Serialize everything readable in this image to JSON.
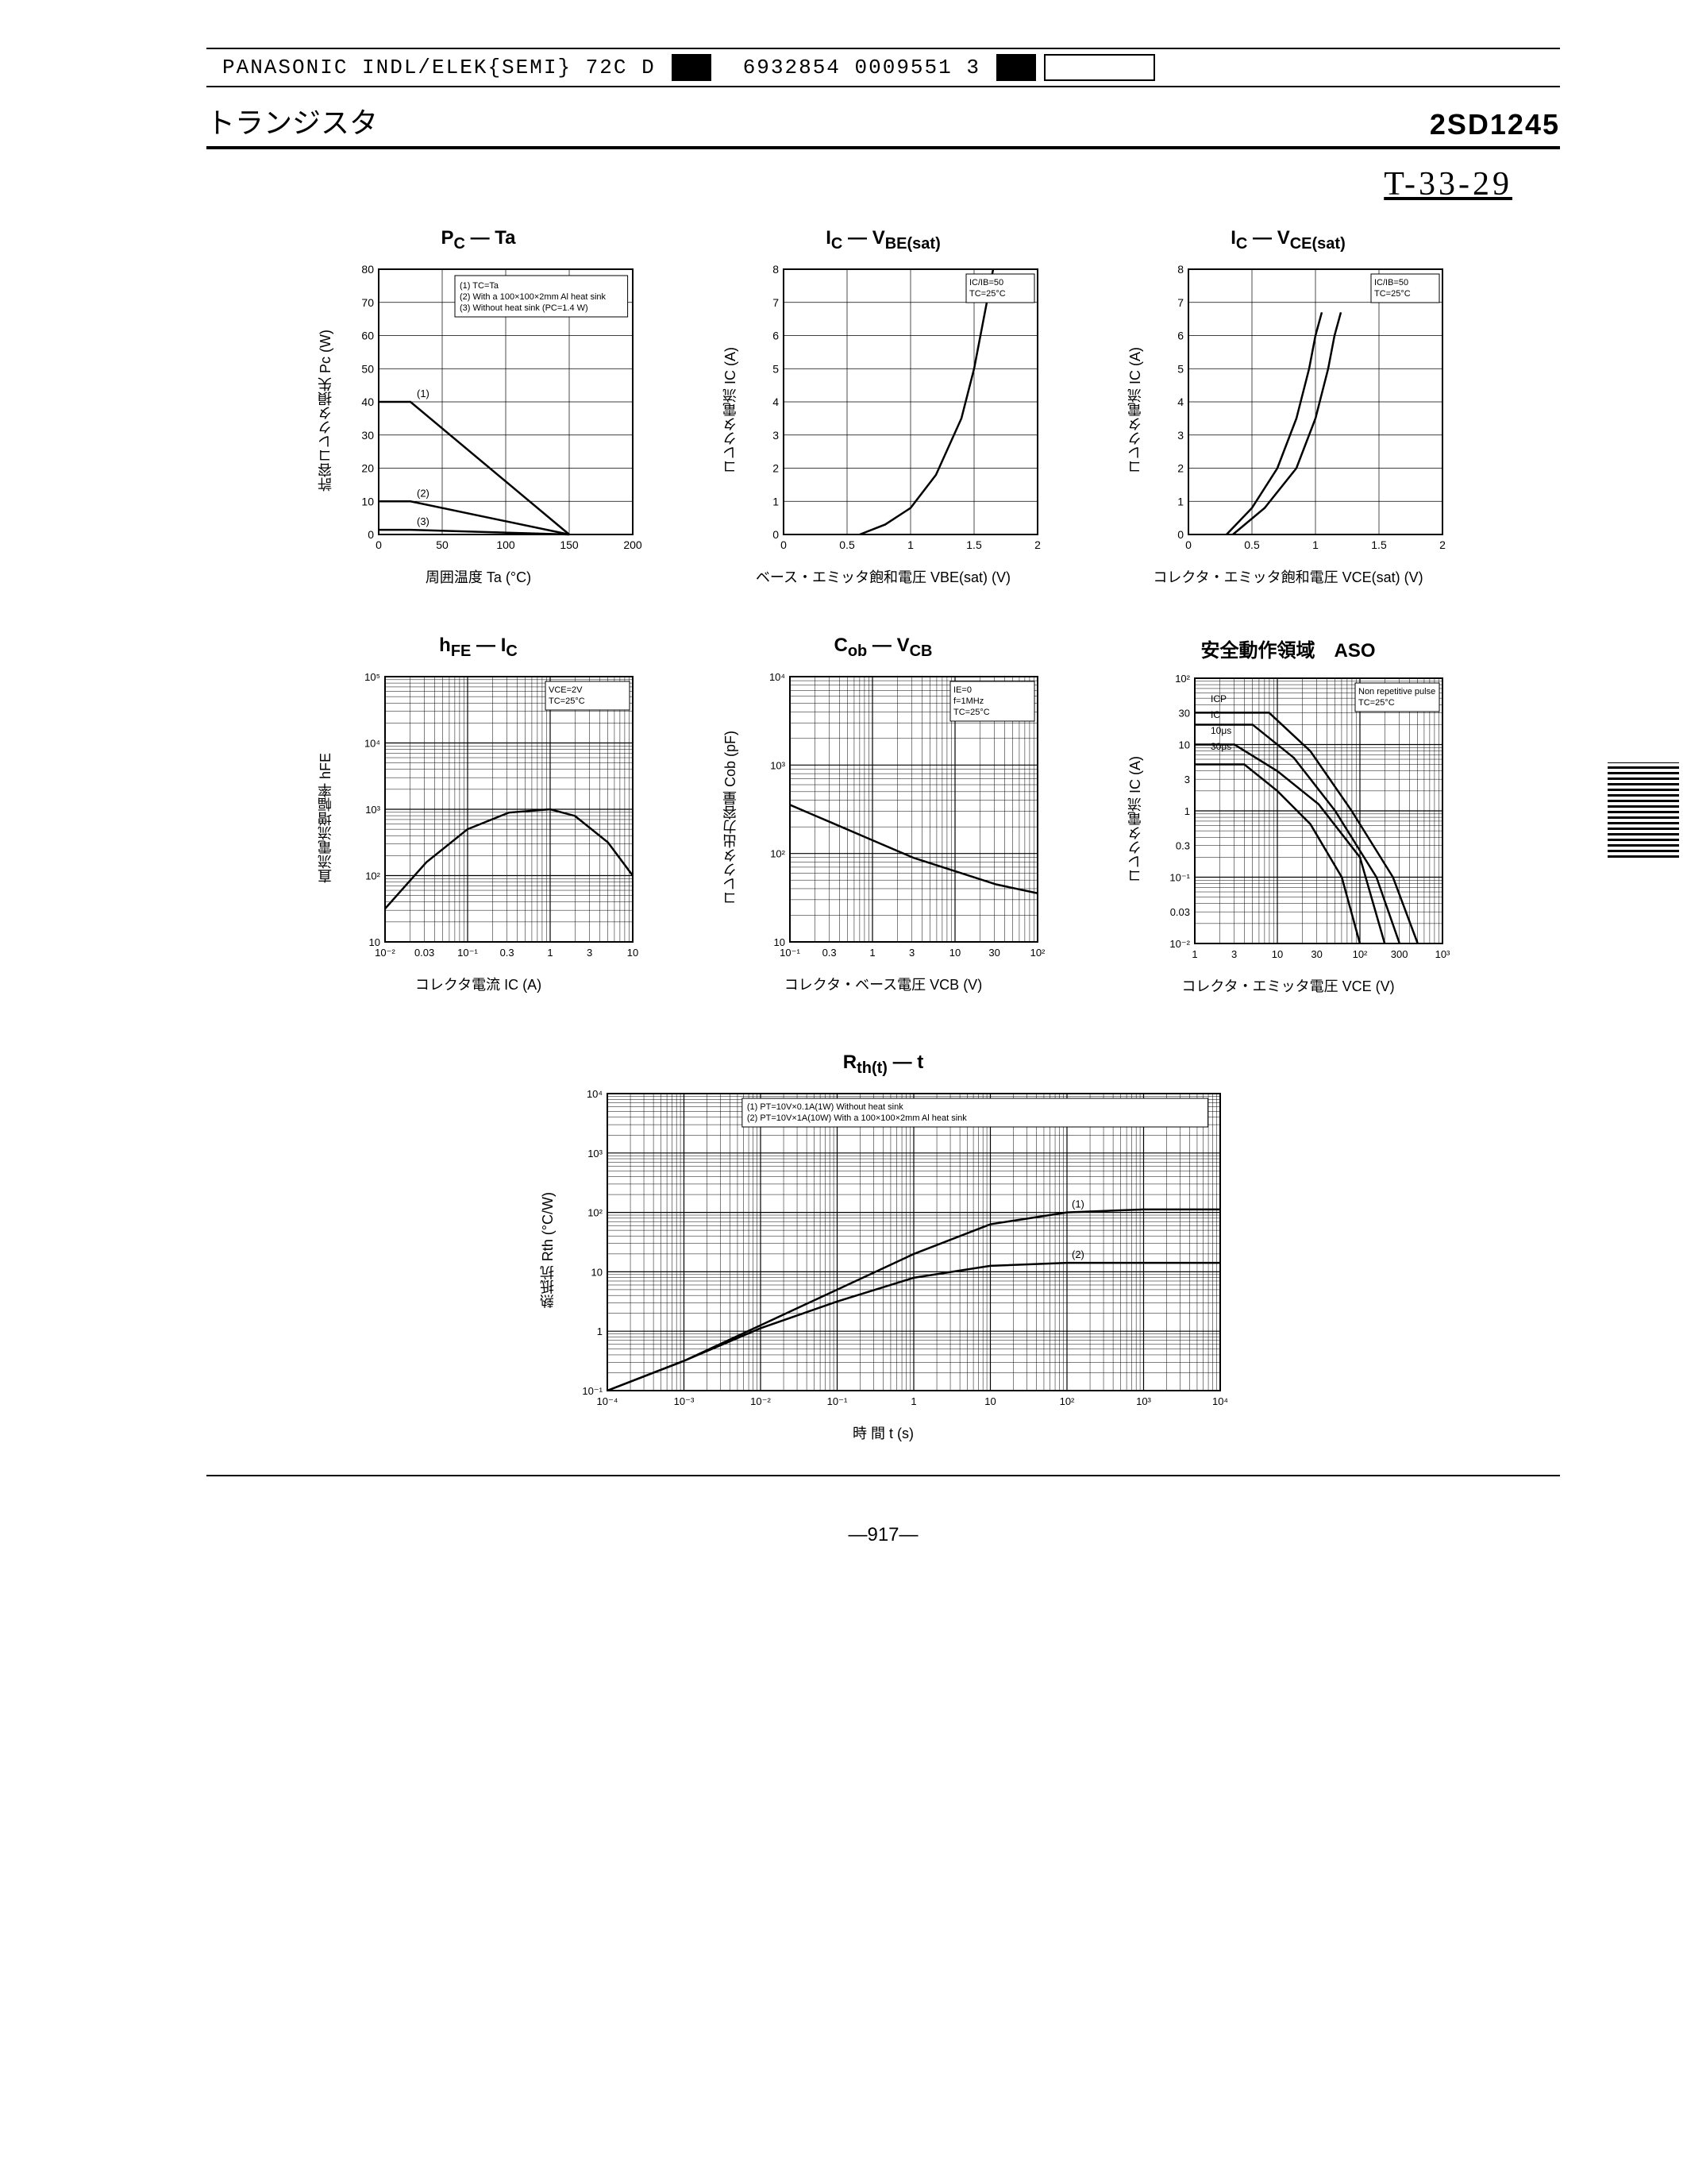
{
  "header": {
    "company": "PANASONIC INDL/ELEK{SEMI} 72C D",
    "code": "6932854 0009551 3"
  },
  "title_jp": "トランジスタ",
  "part_number": "2SD1245",
  "handwritten_code": "T-33-29",
  "page_number": "—917—",
  "common": {
    "line_color": "#000000",
    "border_color": "#000000",
    "grid_color": "#000000",
    "bg": "#ffffff"
  },
  "charts": {
    "pc_ta": {
      "type": "line",
      "title_html": "P<sub>C</sub> — Ta",
      "x_label": "周囲温度 Ta (°C)",
      "y_label": "許容コレクタ損失 Pc (W)",
      "xlim": [
        0,
        200
      ],
      "ylim": [
        0,
        80
      ],
      "xticks": [
        0,
        50,
        100,
        150,
        200
      ],
      "yticks": [
        0,
        10,
        20,
        30,
        40,
        50,
        60,
        70,
        80
      ],
      "legend": [
        "(1) TC=Ta",
        "(2) With a 100×100×2mm Al heat sink",
        "(3) Without heat sink (PC=1.4 W)"
      ],
      "series": [
        {
          "label": "(1)",
          "pts": [
            [
              0,
              40
            ],
            [
              25,
              40
            ],
            [
              150,
              0
            ]
          ]
        },
        {
          "label": "(2)",
          "pts": [
            [
              0,
              10
            ],
            [
              25,
              10
            ],
            [
              150,
              0
            ]
          ]
        },
        {
          "label": "(3)",
          "pts": [
            [
              0,
              1.4
            ],
            [
              25,
              1.4
            ],
            [
              150,
              0
            ]
          ]
        }
      ]
    },
    "ic_vbe": {
      "type": "line",
      "title_html": "I<sub>C</sub> — V<sub>BE(sat)</sub>",
      "x_label": "ベース・エミッタ飽和電圧 VBE(sat) (V)",
      "y_label": "コレクタ電流 IC (A)",
      "xlim": [
        0,
        2.0
      ],
      "ylim": [
        0,
        8
      ],
      "xticks": [
        0,
        0.5,
        1.0,
        1.5,
        2.0
      ],
      "yticks": [
        0,
        1,
        2,
        3,
        4,
        5,
        6,
        7,
        8
      ],
      "cond": [
        "IC/IB=50",
        "TC=25°C"
      ],
      "series": [
        {
          "pts": [
            [
              0.6,
              0
            ],
            [
              0.8,
              0.3
            ],
            [
              1.0,
              0.8
            ],
            [
              1.2,
              1.8
            ],
            [
              1.4,
              3.5
            ],
            [
              1.5,
              5
            ],
            [
              1.55,
              6
            ],
            [
              1.6,
              7
            ],
            [
              1.65,
              8
            ]
          ]
        }
      ]
    },
    "ic_vce": {
      "type": "line",
      "title_html": "I<sub>C</sub> — V<sub>CE(sat)</sub>",
      "x_label": "コレクタ・エミッタ飽和電圧 VCE(sat) (V)",
      "y_label": "コレクタ電流 IC (A)",
      "xlim": [
        0,
        2.0
      ],
      "ylim": [
        0,
        8
      ],
      "xticks": [
        0,
        0.5,
        1.0,
        1.5,
        2.0
      ],
      "yticks": [
        0,
        1,
        2,
        3,
        4,
        5,
        6,
        7,
        8
      ],
      "cond": [
        "IC/IB=50",
        "TC=25°C"
      ],
      "series": [
        {
          "pts": [
            [
              0.3,
              0
            ],
            [
              0.5,
              0.8
            ],
            [
              0.7,
              2.0
            ],
            [
              0.85,
              3.5
            ],
            [
              0.95,
              5
            ],
            [
              1.0,
              6
            ],
            [
              1.05,
              6.7
            ]
          ]
        },
        {
          "pts": [
            [
              0.35,
              0
            ],
            [
              0.6,
              0.8
            ],
            [
              0.85,
              2.0
            ],
            [
              1.0,
              3.5
            ],
            [
              1.1,
              5
            ],
            [
              1.15,
              6
            ],
            [
              1.2,
              6.7
            ]
          ]
        }
      ]
    },
    "hfe_ic": {
      "type": "loglog",
      "title_html": "h<sub>FE</sub> — I<sub>C</sub>",
      "x_label": "コレクタ電流 IC (A)",
      "y_label": "直流電流増幅率 hFE",
      "x_decades": [
        0.01,
        0.03,
        0.1,
        0.3,
        1,
        3,
        10
      ],
      "y_decades": [
        10,
        100,
        1000,
        10000,
        100000
      ],
      "xlim_log": [
        -2,
        1
      ],
      "ylim_log": [
        1,
        5
      ],
      "cond": [
        "VCE=2V",
        "TC=25°C"
      ],
      "series": [
        {
          "pts_log": [
            [
              -2,
              1.5
            ],
            [
              -1.5,
              2.2
            ],
            [
              -1,
              2.7
            ],
            [
              -0.5,
              2.95
            ],
            [
              0,
              3.0
            ],
            [
              0.3,
              2.9
            ],
            [
              0.7,
              2.5
            ],
            [
              1,
              2.0
            ]
          ]
        }
      ]
    },
    "cob_vcb": {
      "type": "loglog",
      "title_html": "C<sub>ob</sub> — V<sub>CB</sub>",
      "x_label": "コレクタ・ベース電圧 VCB (V)",
      "y_label": "コレクタ出力容量 Cob (pF)",
      "x_decades": [
        0.1,
        0.3,
        1,
        3,
        10,
        30,
        100
      ],
      "y_decades": [
        10,
        100,
        1000,
        10000
      ],
      "xlim_log": [
        -1,
        2
      ],
      "ylim_log": [
        1,
        4
      ],
      "cond": [
        "IE=0",
        "f=1MHz",
        "TC=25°C"
      ],
      "series": [
        {
          "pts_log": [
            [
              -1,
              2.55
            ],
            [
              -0.5,
              2.35
            ],
            [
              0,
              2.15
            ],
            [
              0.5,
              1.95
            ],
            [
              1,
              1.8
            ],
            [
              1.5,
              1.65
            ],
            [
              2,
              1.55
            ]
          ]
        }
      ]
    },
    "aso": {
      "type": "loglog",
      "title_html": "安全動作領域　ASO",
      "x_label": "コレクタ・エミッタ電圧 VCE (V)",
      "y_label": "コレクタ電流 IC (A)",
      "x_decades": [
        1,
        3,
        10,
        30,
        100,
        300,
        1000
      ],
      "y_decades": [
        0.01,
        0.03,
        0.1,
        0.3,
        1,
        3,
        10,
        30,
        100
      ],
      "xlim_log": [
        0,
        3
      ],
      "ylim_log": [
        -2,
        2
      ],
      "cond": [
        "Non repetitive pulse",
        "TC=25°C"
      ],
      "annotations": [
        "ICP",
        "IC",
        "10μs",
        "30μs"
      ],
      "series": [
        {
          "pts_log": [
            [
              0,
              1.0
            ],
            [
              0.48,
              1.0
            ],
            [
              1.0,
              0.6
            ],
            [
              1.5,
              0.1
            ],
            [
              2.0,
              -0.7
            ],
            [
              2.3,
              -2
            ]
          ]
        },
        {
          "pts_log": [
            [
              0,
              0.7
            ],
            [
              0.6,
              0.7
            ],
            [
              1.0,
              0.3
            ],
            [
              1.4,
              -0.2
            ],
            [
              1.78,
              -1.0
            ],
            [
              2.0,
              -2
            ]
          ]
        },
        {
          "pts_log": [
            [
              0,
              1.3
            ],
            [
              0.7,
              1.3
            ],
            [
              1.2,
              0.8
            ],
            [
              1.7,
              0.0
            ],
            [
              2.2,
              -1.0
            ],
            [
              2.48,
              -2
            ]
          ]
        },
        {
          "pts_log": [
            [
              0,
              1.48
            ],
            [
              0.9,
              1.48
            ],
            [
              1.4,
              0.9
            ],
            [
              1.9,
              0.0
            ],
            [
              2.4,
              -1.0
            ],
            [
              2.7,
              -2
            ]
          ]
        }
      ]
    },
    "rth_t": {
      "type": "loglog",
      "title_html": "R<sub>th(t)</sub> — t",
      "x_label": "時 間 t (s)",
      "y_label": "熱抵抗 Rth (°C/W)",
      "x_decades": [
        0.0001,
        0.001,
        0.01,
        0.1,
        1,
        10,
        100,
        1000,
        10000
      ],
      "y_decades": [
        0.1,
        1,
        10,
        100,
        1000,
        10000
      ],
      "xlim_log": [
        -4,
        4
      ],
      "ylim_log": [
        -1,
        4
      ],
      "legend": [
        "(1) PT=10V×0.1A(1W) Without heat sink",
        "(2) PT=10V×1A(10W) With a 100×100×2mm Al heat sink"
      ],
      "series": [
        {
          "label": "(1)",
          "pts_log": [
            [
              -4,
              -1
            ],
            [
              -3,
              -0.5
            ],
            [
              -2,
              0.1
            ],
            [
              -1,
              0.7
            ],
            [
              0,
              1.3
            ],
            [
              1,
              1.8
            ],
            [
              2,
              2.0
            ],
            [
              3,
              2.05
            ],
            [
              4,
              2.05
            ]
          ]
        },
        {
          "label": "(2)",
          "pts_log": [
            [
              -4,
              -1
            ],
            [
              -3,
              -0.5
            ],
            [
              -2,
              0.05
            ],
            [
              -1,
              0.5
            ],
            [
              0,
              0.9
            ],
            [
              1,
              1.1
            ],
            [
              2,
              1.15
            ],
            [
              3,
              1.15
            ],
            [
              4,
              1.15
            ]
          ]
        }
      ]
    }
  }
}
